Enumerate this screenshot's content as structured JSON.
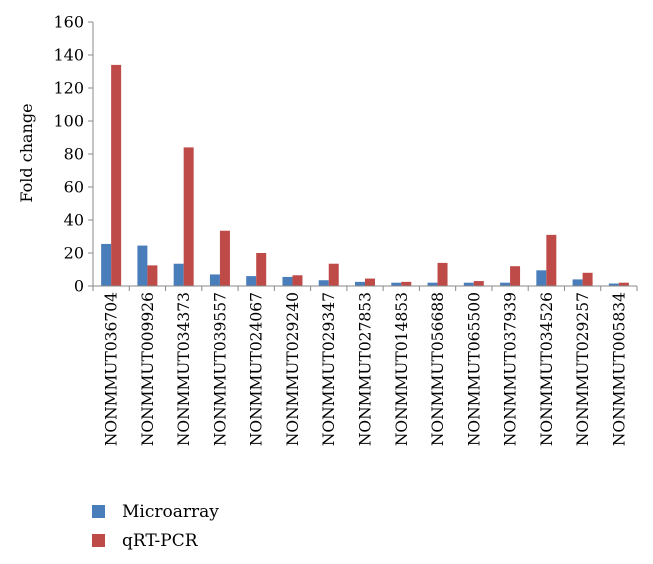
{
  "chart_data": {
    "type": "bar",
    "title": "",
    "xlabel": "",
    "ylabel": "Fold change",
    "ylim": [
      0,
      160
    ],
    "yticks": [
      0,
      20,
      40,
      60,
      80,
      100,
      120,
      140,
      160
    ],
    "grid": false,
    "legend_position": "bottom-left",
    "categories": [
      "NONMMUT036704",
      "NONMMUT009926",
      "NONMMUT034373",
      "NONMMUT039557",
      "NONMMUT024067",
      "NONMMUT029240",
      "NONMMUT029347",
      "NONMMUT027853",
      "NONMMUT014853",
      "NONMMUT056688",
      "NONMMUT065500",
      "NONMMUT037939",
      "NONMMUT034526",
      "NONMMUT029257",
      "NONMMUT005834"
    ],
    "series": [
      {
        "name": "Microarray",
        "color": "#4a7ebb",
        "values": [
          25.5,
          24.5,
          13.5,
          7,
          6,
          5.5,
          3.5,
          2.5,
          2,
          2,
          2,
          2,
          9.5,
          4,
          1.5
        ]
      },
      {
        "name": "qRT-PCR",
        "color": "#be4b48",
        "values": [
          134,
          12.5,
          84,
          33.5,
          20,
          6.5,
          13.5,
          4.5,
          2.5,
          14,
          3,
          12,
          31,
          8,
          2
        ]
      }
    ]
  }
}
